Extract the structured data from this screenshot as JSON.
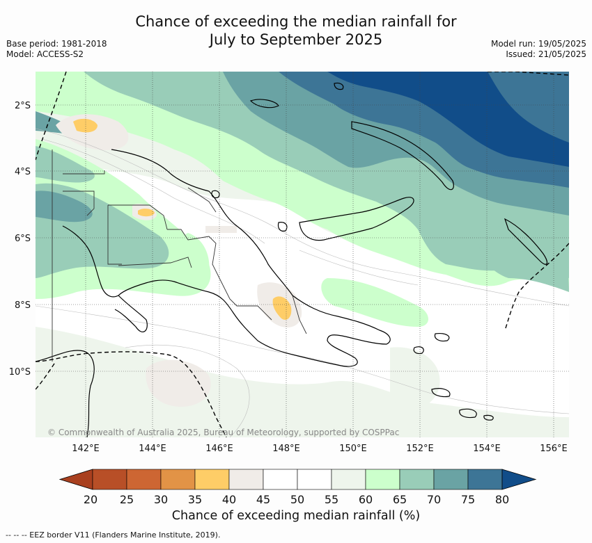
{
  "title_line1": "Chance of exceeding the median rainfall for",
  "title_line2": "July to September 2025",
  "base_period": "Base period: 1981-2018",
  "model": "Model: ACCESS-S2",
  "model_run": "Model run: 19/05/2025",
  "issued": "Issued: 21/05/2025",
  "copyright": "© Commonwealth of Australia 2025, Bureau of Meteorology, supported by COSPPac",
  "footer": "--  --  -- EEZ border V11 (Flanders Marine Institute, 2019).",
  "lat_labels": [
    "2°S",
    "4°S",
    "6°S",
    "8°S",
    "10°S"
  ],
  "lon_labels": [
    "142°E",
    "144°E",
    "146°E",
    "148°E",
    "150°E",
    "152°E",
    "154°E",
    "156°E"
  ],
  "colorbar": {
    "title": "Chance of exceeding median rainfall (%)",
    "ticks": [
      "20",
      "25",
      "30",
      "35",
      "40",
      "45",
      "50",
      "55",
      "60",
      "65",
      "70",
      "75",
      "80"
    ],
    "colors": [
      "#a9401f",
      "#b84f27",
      "#cd6633",
      "#e29346",
      "#fecd67",
      "#f0ece8",
      "#ffffff",
      "#ffffff",
      "#eef5ec",
      "#ccffcc",
      "#99cdb8",
      "#6aa3a4",
      "#3d7596",
      "#114d89"
    ]
  }
}
